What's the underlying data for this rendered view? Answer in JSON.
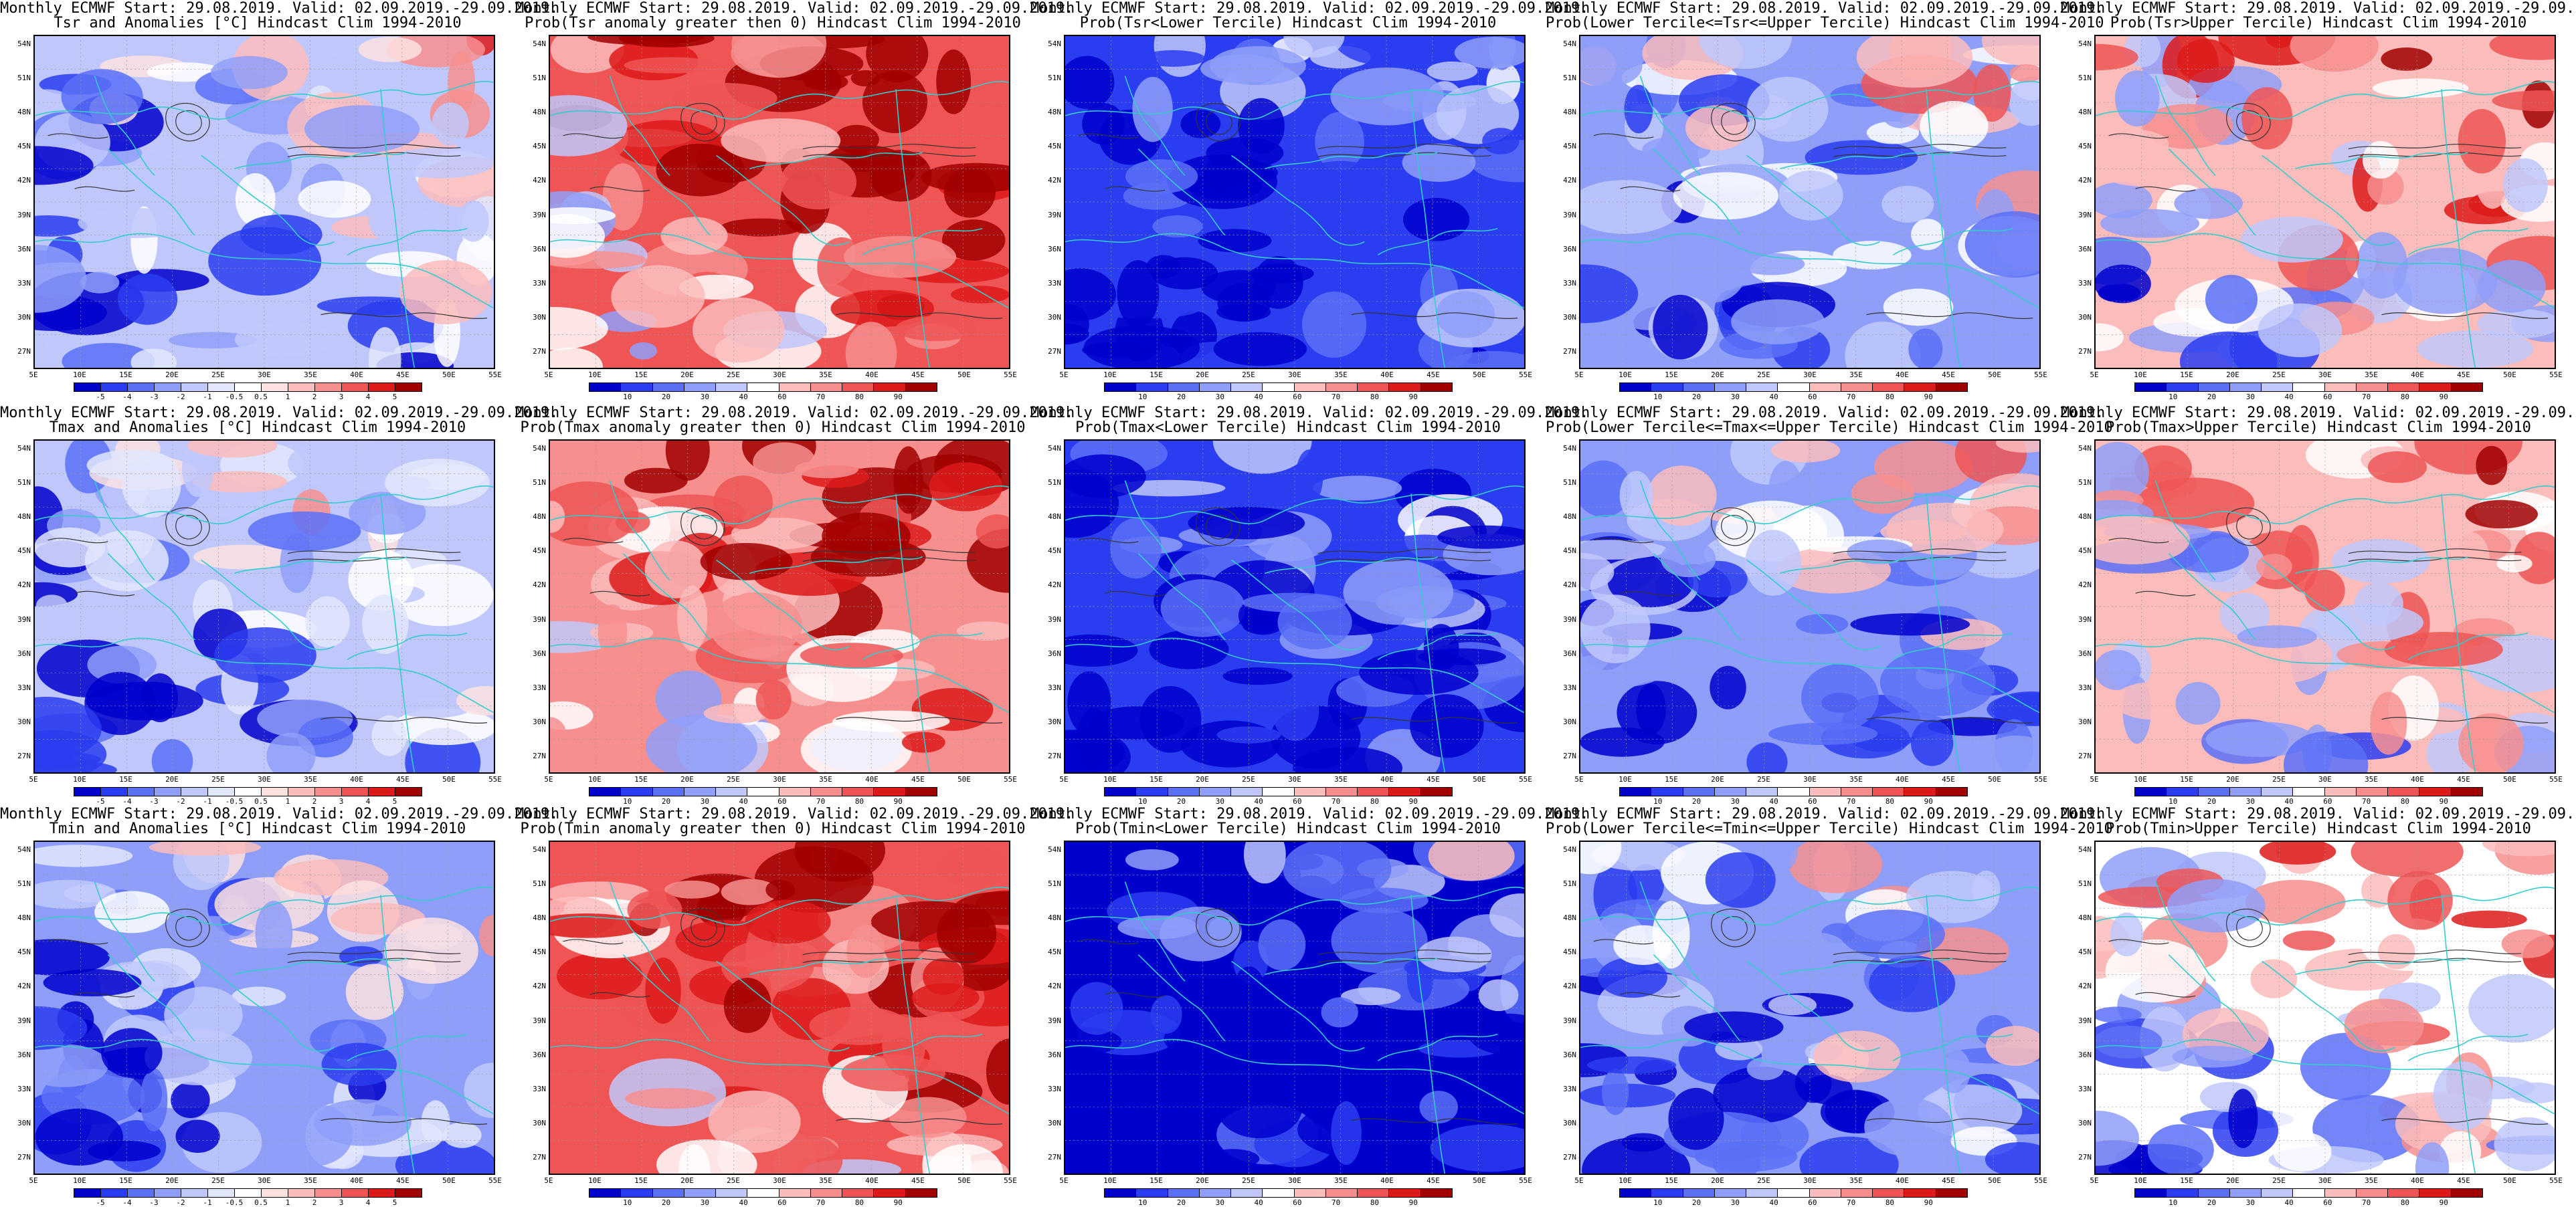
{
  "header_common": "Monthly ECMWF Start: 29.08.2019. Valid: 02.09.2019.-29.09.2019.",
  "lat_labels": [
    "54N",
    "51N",
    "48N",
    "45N",
    "42N",
    "39N",
    "36N",
    "33N",
    "30N",
    "27N"
  ],
  "lon_labels": [
    "5E",
    "10E",
    "15E",
    "20E",
    "25E",
    "30E",
    "35E",
    "40E",
    "45E",
    "50E",
    "55E"
  ],
  "colors": {
    "anomaly_scale": [
      "#0000cc",
      "#2a3df0",
      "#5a70f7",
      "#8f9ff9",
      "#c0c8fb",
      "#e2e6fd",
      "#ffffff",
      "#fde2e2",
      "#fbbcbc",
      "#f78f8f",
      "#ef5555",
      "#dd1a1a",
      "#a00000"
    ],
    "prob_scale": [
      "#0000cc",
      "#2a3df0",
      "#5a70f7",
      "#8f9ff9",
      "#c0c8fb",
      "#ffffff",
      "#fbbcbc",
      "#f78f8f",
      "#ef5555",
      "#dd1a1a",
      "#a00000"
    ],
    "coast": "#33cccc",
    "contour": "#333333"
  },
  "colorbars": {
    "anomaly": [
      "-5",
      "-4",
      "-3",
      "-2",
      "-1",
      "-0.5",
      "0.5",
      "1",
      "2",
      "3",
      "4",
      "5"
    ],
    "probability": [
      "10",
      "20",
      "30",
      "40",
      "60",
      "70",
      "80",
      "90"
    ]
  },
  "panels": [
    {
      "id": "tsr-anomaly",
      "line2": "Tsr and Anomalies [°C] Hindcast Clim 1994-2010",
      "scale": "anomaly",
      "field_level": 0.35
    },
    {
      "id": "tsr-prob-pos",
      "line2": "Prob(Tsr anomaly greater then 0) Hindcast Clim 1994-2010",
      "scale": "probability",
      "field_level": 0.8
    },
    {
      "id": "tsr-lower",
      "line2": "Prob(Tsr<Lower Tercile) Hindcast Clim 1994-2010",
      "scale": "probability",
      "field_level": 0.05
    },
    {
      "id": "tsr-middle",
      "line2": "Prob(Lower Tercile<=Tsr<=Upper Tercile) Hindcast Clim 1994-2010",
      "scale": "probability",
      "field_level": 0.3
    },
    {
      "id": "tsr-upper",
      "line2": "Prob(Tsr>Upper Tercile) Hindcast Clim 1994-2010",
      "scale": "probability",
      "field_level": 0.55
    },
    {
      "id": "tmax-anomaly",
      "line2": "Tmax and Anomalies [°C] Hindcast Clim 1994-2010",
      "scale": "anomaly",
      "field_level": 0.3
    },
    {
      "id": "tmax-prob-pos",
      "line2": "Prob(Tmax anomaly greater then 0) Hindcast Clim 1994-2010",
      "scale": "probability",
      "field_level": 0.72
    },
    {
      "id": "tmax-lower",
      "line2": "Prob(Tmax<Lower Tercile) Hindcast Clim 1994-2010",
      "scale": "probability",
      "field_level": 0.08
    },
    {
      "id": "tmax-middle",
      "line2": "Prob(Lower Tercile<=Tmax<=Upper Tercile) Hindcast Clim 1994-2010",
      "scale": "probability",
      "field_level": 0.28
    },
    {
      "id": "tmax-upper",
      "line2": "Prob(Tmax>Upper Tercile) Hindcast Clim 1994-2010",
      "scale": "probability",
      "field_level": 0.55
    },
    {
      "id": "tmin-anomaly",
      "line2": "Tmin and Anomalies [°C] Hindcast Clim 1994-2010",
      "scale": "anomaly",
      "field_level": 0.25
    },
    {
      "id": "tmin-prob-pos",
      "line2": "Prob(Tmin anomaly greater then 0) Hindcast Clim 1994-2010",
      "scale": "probability",
      "field_level": 0.78
    },
    {
      "id": "tmin-lower",
      "line2": "Prob(Tmin<Lower Tercile) Hindcast Clim 1994-2010",
      "scale": "probability",
      "field_level": 0.04
    },
    {
      "id": "tmin-middle",
      "line2": "Prob(Lower Tercile<=Tmin<=Upper Tercile) Hindcast Clim 1994-2010",
      "scale": "probability",
      "field_level": 0.28
    },
    {
      "id": "tmin-upper",
      "line2": "Prob(Tmin>Upper Tercile) Hindcast Clim 1994-2010",
      "scale": "probability",
      "field_level": 0.5
    }
  ]
}
